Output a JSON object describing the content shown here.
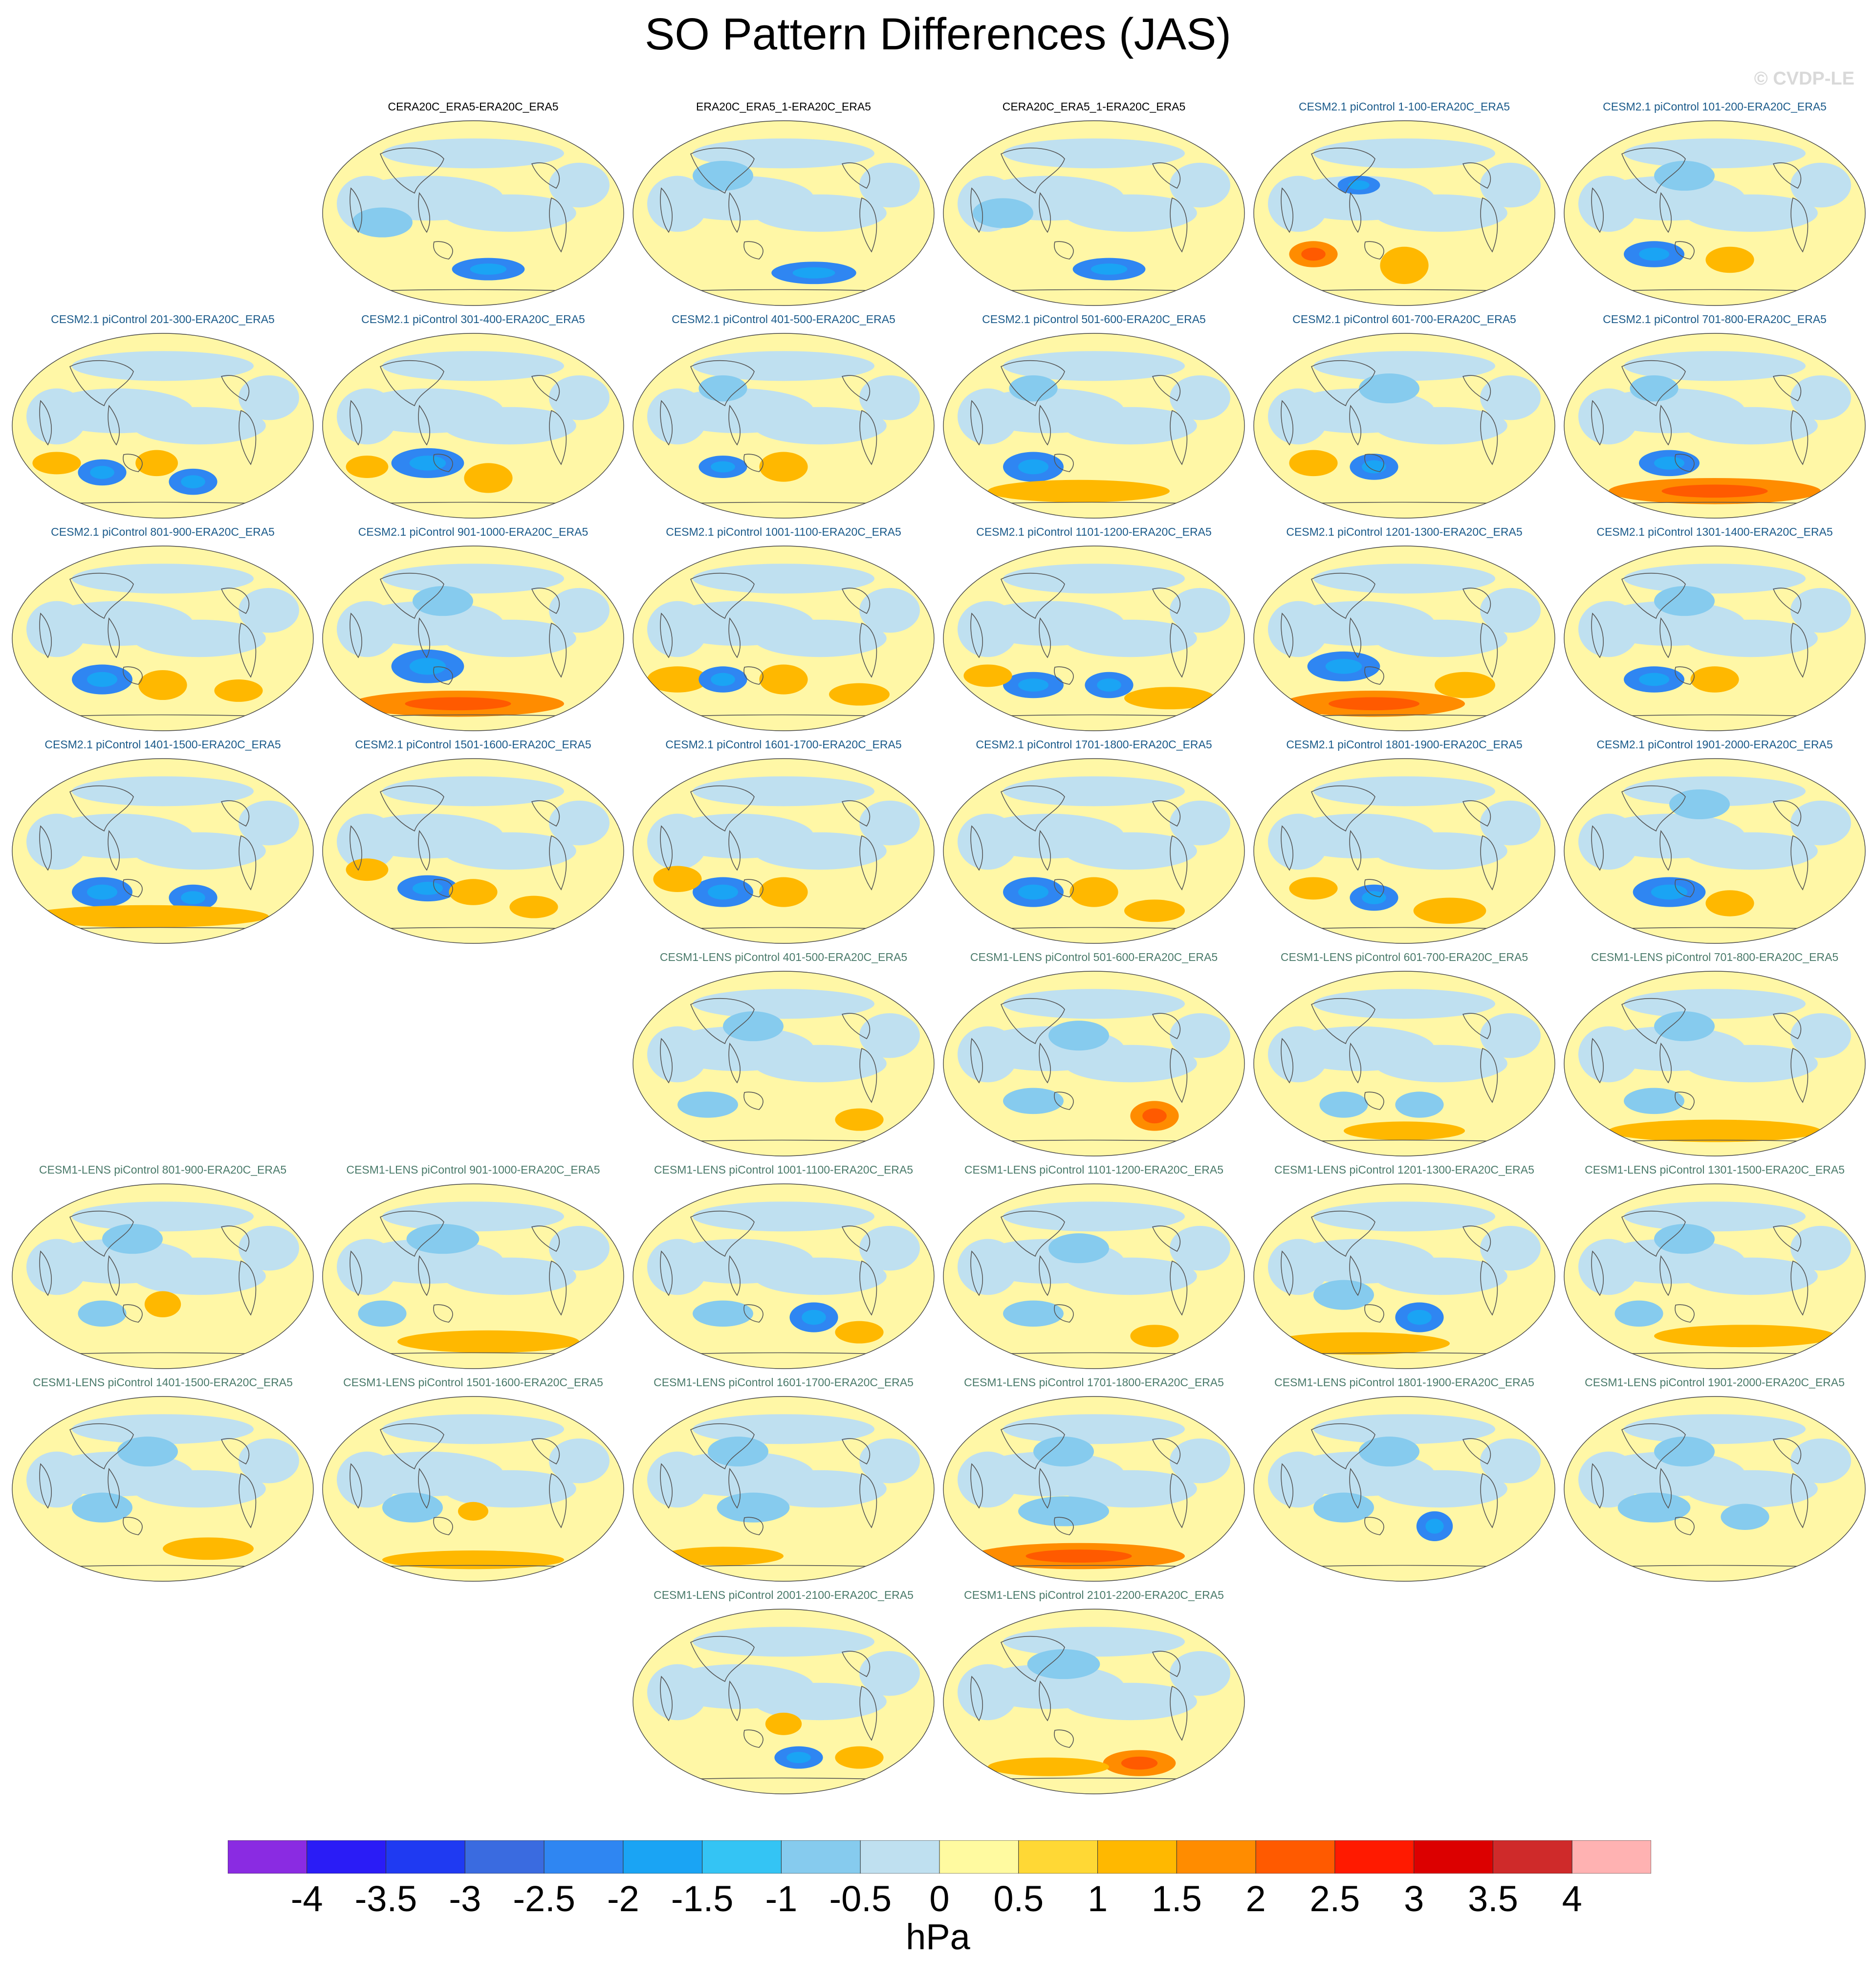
{
  "title": "SO Pattern Differences (JAS)",
  "watermark": "© CVDP-LE",
  "colors": {
    "obs_title": "#000000",
    "cesm2_title": "#1a5a8a",
    "cesm1_title": "#4a7a6a",
    "ocean_fill": "#bfe0f0",
    "coast": "#555555"
  },
  "panels": [
    {
      "title": "CERA20C_ERA5-ERA20C_ERA5",
      "group": "obs",
      "row": 0,
      "col": 1,
      "features": [
        [
          "b",
          0.55,
          0.8,
          0.12,
          0.06
        ],
        [
          "c",
          0.2,
          0.55,
          0.1,
          0.08
        ]
      ]
    },
    {
      "title": "ERA20C_ERA5_1-ERA20C_ERA5",
      "group": "obs",
      "row": 0,
      "col": 2,
      "features": [
        [
          "b",
          0.6,
          0.82,
          0.14,
          0.06
        ],
        [
          "c",
          0.3,
          0.3,
          0.1,
          0.08
        ]
      ]
    },
    {
      "title": "CERA20C_ERA5_1-ERA20C_ERA5",
      "group": "obs",
      "row": 0,
      "col": 3,
      "features": [
        [
          "b",
          0.55,
          0.8,
          0.12,
          0.06
        ],
        [
          "c",
          0.2,
          0.5,
          0.1,
          0.08
        ]
      ]
    },
    {
      "title": "CESM2.1 piControl 1-100-ERA20C_ERA5",
      "group": "cesm2",
      "row": 0,
      "col": 4,
      "features": [
        [
          "o",
          0.5,
          0.78,
          0.08,
          0.1
        ],
        [
          "r",
          0.2,
          0.72,
          0.08,
          0.07
        ],
        [
          "b",
          0.35,
          0.35,
          0.07,
          0.05
        ]
      ]
    },
    {
      "title": "CESM2.1 piControl 101-200-ERA20C_ERA5",
      "group": "cesm2",
      "row": 0,
      "col": 5,
      "features": [
        [
          "b",
          0.3,
          0.72,
          0.1,
          0.07
        ],
        [
          "o",
          0.55,
          0.75,
          0.08,
          0.07
        ],
        [
          "c",
          0.4,
          0.3,
          0.1,
          0.08
        ]
      ]
    },
    {
      "title": "CESM2.1 piControl 201-300-ERA20C_ERA5",
      "group": "cesm2",
      "row": 1,
      "col": 0,
      "features": [
        [
          "b",
          0.3,
          0.75,
          0.08,
          0.07
        ],
        [
          "b",
          0.6,
          0.8,
          0.08,
          0.07
        ],
        [
          "o",
          0.48,
          0.7,
          0.07,
          0.07
        ],
        [
          "o",
          0.15,
          0.7,
          0.08,
          0.06
        ]
      ]
    },
    {
      "title": "CESM2.1 piControl 301-400-ERA20C_ERA5",
      "group": "cesm2",
      "row": 1,
      "col": 1,
      "features": [
        [
          "b",
          0.35,
          0.7,
          0.12,
          0.08
        ],
        [
          "o",
          0.55,
          0.78,
          0.08,
          0.08
        ],
        [
          "o",
          0.15,
          0.72,
          0.07,
          0.06
        ]
      ]
    },
    {
      "title": "CESM2.1 piControl 401-500-ERA20C_ERA5",
      "group": "cesm2",
      "row": 1,
      "col": 2,
      "features": [
        [
          "b",
          0.3,
          0.72,
          0.08,
          0.06
        ],
        [
          "o",
          0.5,
          0.72,
          0.08,
          0.08
        ],
        [
          "c",
          0.3,
          0.3,
          0.08,
          0.07
        ]
      ]
    },
    {
      "title": "CESM2.1 piControl 501-600-ERA20C_ERA5",
      "group": "cesm2",
      "row": 1,
      "col": 3,
      "features": [
        [
          "b",
          0.3,
          0.72,
          0.1,
          0.08
        ],
        [
          "o",
          0.45,
          0.85,
          0.3,
          0.06
        ],
        [
          "c",
          0.3,
          0.3,
          0.08,
          0.07
        ]
      ]
    },
    {
      "title": "CESM2.1 piControl 601-700-ERA20C_ERA5",
      "group": "cesm2",
      "row": 1,
      "col": 4,
      "features": [
        [
          "b",
          0.4,
          0.72,
          0.08,
          0.07
        ],
        [
          "o",
          0.2,
          0.7,
          0.08,
          0.07
        ],
        [
          "c",
          0.45,
          0.3,
          0.1,
          0.08
        ]
      ]
    },
    {
      "title": "CESM2.1 piControl 701-800-ERA20C_ERA5",
      "group": "cesm2",
      "row": 1,
      "col": 5,
      "features": [
        [
          "r",
          0.5,
          0.85,
          0.35,
          0.07
        ],
        [
          "b",
          0.35,
          0.7,
          0.1,
          0.07
        ],
        [
          "c",
          0.3,
          0.3,
          0.08,
          0.07
        ]
      ]
    },
    {
      "title": "CESM2.1 piControl 801-900-ERA20C_ERA5",
      "group": "cesm2",
      "row": 2,
      "col": 0,
      "features": [
        [
          "b",
          0.3,
          0.72,
          0.1,
          0.08
        ],
        [
          "o",
          0.5,
          0.75,
          0.08,
          0.08
        ],
        [
          "o",
          0.75,
          0.78,
          0.08,
          0.06
        ]
      ]
    },
    {
      "title": "CESM2.1 piControl 901-1000-ERA20C_ERA5",
      "group": "cesm2",
      "row": 2,
      "col": 1,
      "features": [
        [
          "b",
          0.35,
          0.65,
          0.12,
          0.09
        ],
        [
          "r",
          0.45,
          0.85,
          0.35,
          0.07
        ],
        [
          "c",
          0.4,
          0.3,
          0.1,
          0.08
        ]
      ]
    },
    {
      "title": "CESM2.1 piControl 1001-1100-ERA20C_ERA5",
      "group": "cesm2",
      "row": 2,
      "col": 2,
      "features": [
        [
          "o",
          0.15,
          0.72,
          0.1,
          0.07
        ],
        [
          "b",
          0.3,
          0.72,
          0.08,
          0.07
        ],
        [
          "o",
          0.5,
          0.72,
          0.08,
          0.08
        ],
        [
          "o",
          0.75,
          0.8,
          0.1,
          0.06
        ]
      ]
    },
    {
      "title": "CESM2.1 piControl 1101-1200-ERA20C_ERA5",
      "group": "cesm2",
      "row": 2,
      "col": 3,
      "features": [
        [
          "b",
          0.3,
          0.75,
          0.1,
          0.07
        ],
        [
          "b",
          0.55,
          0.75,
          0.08,
          0.07
        ],
        [
          "o",
          0.75,
          0.82,
          0.15,
          0.06
        ],
        [
          "o",
          0.15,
          0.7,
          0.08,
          0.06
        ]
      ]
    },
    {
      "title": "CESM2.1 piControl 1201-1300-ERA20C_ERA5",
      "group": "cesm2",
      "row": 2,
      "col": 4,
      "features": [
        [
          "b",
          0.3,
          0.65,
          0.12,
          0.08
        ],
        [
          "r",
          0.4,
          0.85,
          0.3,
          0.07
        ],
        [
          "o",
          0.7,
          0.75,
          0.1,
          0.07
        ]
      ]
    },
    {
      "title": "CESM2.1 piControl 1301-1400-ERA20C_ERA5",
      "group": "cesm2",
      "row": 2,
      "col": 5,
      "features": [
        [
          "b",
          0.3,
          0.72,
          0.1,
          0.07
        ],
        [
          "o",
          0.5,
          0.72,
          0.08,
          0.07
        ],
        [
          "c",
          0.4,
          0.3,
          0.1,
          0.08
        ]
      ]
    },
    {
      "title": "CESM2.1 piControl 1401-1500-ERA20C_ERA5",
      "group": "cesm2",
      "row": 3,
      "col": 0,
      "features": [
        [
          "b",
          0.3,
          0.72,
          0.1,
          0.08
        ],
        [
          "b",
          0.6,
          0.75,
          0.08,
          0.07
        ],
        [
          "o",
          0.45,
          0.85,
          0.4,
          0.06
        ]
      ]
    },
    {
      "title": "CESM2.1 piControl 1501-1600-ERA20C_ERA5",
      "group": "cesm2",
      "row": 3,
      "col": 1,
      "features": [
        [
          "b",
          0.35,
          0.7,
          0.1,
          0.07
        ],
        [
          "o",
          0.5,
          0.72,
          0.08,
          0.07
        ],
        [
          "o",
          0.7,
          0.8,
          0.08,
          0.06
        ],
        [
          "o",
          0.15,
          0.6,
          0.07,
          0.06
        ]
      ]
    },
    {
      "title": "CESM2.1 piControl 1601-1700-ERA20C_ERA5",
      "group": "cesm2",
      "row": 3,
      "col": 2,
      "features": [
        [
          "b",
          0.3,
          0.72,
          0.1,
          0.08
        ],
        [
          "o",
          0.5,
          0.72,
          0.08,
          0.08
        ],
        [
          "o",
          0.15,
          0.65,
          0.08,
          0.07
        ]
      ]
    },
    {
      "title": "CESM2.1 piControl 1701-1800-ERA20C_ERA5",
      "group": "cesm2",
      "row": 3,
      "col": 3,
      "features": [
        [
          "b",
          0.3,
          0.72,
          0.1,
          0.08
        ],
        [
          "o",
          0.5,
          0.72,
          0.08,
          0.08
        ],
        [
          "o",
          0.7,
          0.82,
          0.1,
          0.06
        ]
      ]
    },
    {
      "title": "CESM2.1 piControl 1801-1900-ERA20C_ERA5",
      "group": "cesm2",
      "row": 3,
      "col": 4,
      "features": [
        [
          "b",
          0.4,
          0.75,
          0.08,
          0.07
        ],
        [
          "o",
          0.65,
          0.82,
          0.12,
          0.07
        ],
        [
          "o",
          0.2,
          0.7,
          0.08,
          0.06
        ]
      ]
    },
    {
      "title": "CESM2.1 piControl 1901-2000-ERA20C_ERA5",
      "group": "cesm2",
      "row": 3,
      "col": 5,
      "features": [
        [
          "b",
          0.35,
          0.72,
          0.12,
          0.08
        ],
        [
          "o",
          0.55,
          0.78,
          0.08,
          0.07
        ],
        [
          "c",
          0.45,
          0.25,
          0.1,
          0.08
        ]
      ]
    },
    {
      "title": "CESM1-LENS piControl 401-500-ERA20C_ERA5",
      "group": "cesm1",
      "row": 4,
      "col": 2,
      "features": [
        [
          "c",
          0.25,
          0.72,
          0.1,
          0.07
        ],
        [
          "o",
          0.75,
          0.8,
          0.08,
          0.06
        ],
        [
          "c",
          0.4,
          0.3,
          0.1,
          0.08
        ]
      ]
    },
    {
      "title": "CESM1-LENS piControl 501-600-ERA20C_ERA5",
      "group": "cesm1",
      "row": 4,
      "col": 3,
      "features": [
        [
          "r",
          0.7,
          0.78,
          0.08,
          0.08
        ],
        [
          "c",
          0.3,
          0.7,
          0.1,
          0.07
        ],
        [
          "c",
          0.45,
          0.35,
          0.1,
          0.08
        ]
      ]
    },
    {
      "title": "CESM1-LENS piControl 601-700-ERA20C_ERA5",
      "group": "cesm1",
      "row": 4,
      "col": 4,
      "features": [
        [
          "c",
          0.3,
          0.72,
          0.08,
          0.07
        ],
        [
          "c",
          0.55,
          0.72,
          0.08,
          0.07
        ],
        [
          "o",
          0.5,
          0.86,
          0.2,
          0.05
        ]
      ]
    },
    {
      "title": "CESM1-LENS piControl 701-800-ERA20C_ERA5",
      "group": "cesm1",
      "row": 4,
      "col": 5,
      "features": [
        [
          "o",
          0.5,
          0.86,
          0.35,
          0.06
        ],
        [
          "c",
          0.3,
          0.7,
          0.1,
          0.07
        ],
        [
          "c",
          0.4,
          0.3,
          0.1,
          0.08
        ]
      ]
    },
    {
      "title": "CESM1-LENS piControl 801-900-ERA20C_ERA5",
      "group": "cesm1",
      "row": 5,
      "col": 0,
      "features": [
        [
          "c",
          0.3,
          0.7,
          0.08,
          0.07
        ],
        [
          "o",
          0.5,
          0.65,
          0.06,
          0.07
        ],
        [
          "c",
          0.4,
          0.3,
          0.1,
          0.08
        ]
      ]
    },
    {
      "title": "CESM1-LENS piControl 901-1000-ERA20C_ERA5",
      "group": "cesm1",
      "row": 5,
      "col": 1,
      "features": [
        [
          "o",
          0.55,
          0.85,
          0.3,
          0.06
        ],
        [
          "c",
          0.2,
          0.7,
          0.08,
          0.07
        ],
        [
          "c",
          0.4,
          0.3,
          0.12,
          0.08
        ]
      ]
    },
    {
      "title": "CESM1-LENS piControl 1001-1100-ERA20C_ERA5",
      "group": "cesm1",
      "row": 5,
      "col": 2,
      "features": [
        [
          "b",
          0.6,
          0.72,
          0.08,
          0.08
        ],
        [
          "c",
          0.3,
          0.7,
          0.1,
          0.07
        ],
        [
          "o",
          0.75,
          0.8,
          0.08,
          0.06
        ]
      ]
    },
    {
      "title": "CESM1-LENS piControl 1101-1200-ERA20C_ERA5",
      "group": "cesm1",
      "row": 5,
      "col": 3,
      "features": [
        [
          "c",
          0.3,
          0.7,
          0.1,
          0.07
        ],
        [
          "o",
          0.7,
          0.82,
          0.08,
          0.06
        ],
        [
          "c",
          0.45,
          0.35,
          0.1,
          0.08
        ]
      ]
    },
    {
      "title": "CESM1-LENS piControl 1201-1300-ERA20C_ERA5",
      "group": "cesm1",
      "row": 5,
      "col": 4,
      "features": [
        [
          "b",
          0.55,
          0.72,
          0.08,
          0.08
        ],
        [
          "o",
          0.35,
          0.86,
          0.3,
          0.06
        ],
        [
          "c",
          0.3,
          0.6,
          0.1,
          0.08
        ]
      ]
    },
    {
      "title": "CESM1-LENS piControl 1301-1500-ERA20C_ERA5",
      "group": "cesm1",
      "row": 5,
      "col": 5,
      "features": [
        [
          "o",
          0.6,
          0.82,
          0.3,
          0.06
        ],
        [
          "c",
          0.25,
          0.7,
          0.08,
          0.07
        ],
        [
          "c",
          0.4,
          0.3,
          0.1,
          0.08
        ]
      ]
    },
    {
      "title": "CESM1-LENS piControl 1401-1500-ERA20C_ERA5",
      "group": "cesm1",
      "row": 6,
      "col": 0,
      "features": [
        [
          "o",
          0.65,
          0.82,
          0.15,
          0.06
        ],
        [
          "c",
          0.3,
          0.6,
          0.1,
          0.08
        ],
        [
          "c",
          0.45,
          0.3,
          0.1,
          0.08
        ]
      ]
    },
    {
      "title": "CESM1-LENS piControl 1501-1600-ERA20C_ERA5",
      "group": "cesm1",
      "row": 6,
      "col": 1,
      "features": [
        [
          "o",
          0.5,
          0.88,
          0.3,
          0.05
        ],
        [
          "o",
          0.5,
          0.62,
          0.05,
          0.05
        ],
        [
          "c",
          0.3,
          0.6,
          0.1,
          0.08
        ]
      ]
    },
    {
      "title": "CESM1-LENS piControl 1601-1700-ERA20C_ERA5",
      "group": "cesm1",
      "row": 6,
      "col": 2,
      "features": [
        [
          "o",
          0.3,
          0.86,
          0.2,
          0.05
        ],
        [
          "c",
          0.4,
          0.6,
          0.12,
          0.08
        ],
        [
          "c",
          0.35,
          0.3,
          0.1,
          0.08
        ]
      ]
    },
    {
      "title": "CESM1-LENS piControl 1701-1800-ERA20C_ERA5",
      "group": "cesm1",
      "row": 6,
      "col": 3,
      "features": [
        [
          "r",
          0.45,
          0.86,
          0.35,
          0.07
        ],
        [
          "c",
          0.4,
          0.62,
          0.15,
          0.08
        ],
        [
          "c",
          0.4,
          0.3,
          0.1,
          0.08
        ]
      ]
    },
    {
      "title": "CESM1-LENS piControl 1801-1900-ERA20C_ERA5",
      "group": "cesm1",
      "row": 6,
      "col": 4,
      "features": [
        [
          "b",
          0.6,
          0.7,
          0.06,
          0.08
        ],
        [
          "c",
          0.3,
          0.6,
          0.1,
          0.08
        ],
        [
          "c",
          0.45,
          0.3,
          0.1,
          0.08
        ]
      ]
    },
    {
      "title": "CESM1-LENS piControl 1901-2000-ERA20C_ERA5",
      "group": "cesm1",
      "row": 6,
      "col": 5,
      "features": [
        [
          "c",
          0.3,
          0.6,
          0.12,
          0.08
        ],
        [
          "c",
          0.6,
          0.65,
          0.08,
          0.07
        ],
        [
          "c",
          0.4,
          0.3,
          0.1,
          0.08
        ]
      ]
    },
    {
      "title": "CESM1-LENS piControl 2001-2100-ERA20C_ERA5",
      "group": "cesm1",
      "row": 7,
      "col": 2,
      "features": [
        [
          "b",
          0.55,
          0.8,
          0.08,
          0.06
        ],
        [
          "o",
          0.75,
          0.8,
          0.08,
          0.06
        ],
        [
          "o",
          0.5,
          0.62,
          0.06,
          0.06
        ]
      ]
    },
    {
      "title": "CESM1-LENS piControl 2101-2200-ERA20C_ERA5",
      "group": "cesm1",
      "row": 7,
      "col": 3,
      "features": [
        [
          "r",
          0.65,
          0.83,
          0.12,
          0.07
        ],
        [
          "o",
          0.35,
          0.85,
          0.2,
          0.05
        ],
        [
          "c",
          0.4,
          0.3,
          0.12,
          0.08
        ]
      ]
    }
  ],
  "colorbar": {
    "colors": [
      "#8a2be2",
      "#2a1cf6",
      "#1f3af2",
      "#3a6be0",
      "#2f86f2",
      "#1aa4f4",
      "#34c4f4",
      "#86cbee",
      "#bfe0f0",
      "#fffaa0",
      "#ffd835",
      "#ffb800",
      "#ff8c00",
      "#ff5a00",
      "#ff1a00",
      "#dc0000",
      "#cf2a2a",
      "#ffb2b2"
    ],
    "ticks": [
      "-4",
      "-3.5",
      "-3",
      "-2.5",
      "-2",
      "-1.5",
      "-1",
      "-0.5",
      "0",
      "0.5",
      "1",
      "1.5",
      "2",
      "2.5",
      "3",
      "3.5",
      "4"
    ],
    "unit": "hPa"
  }
}
